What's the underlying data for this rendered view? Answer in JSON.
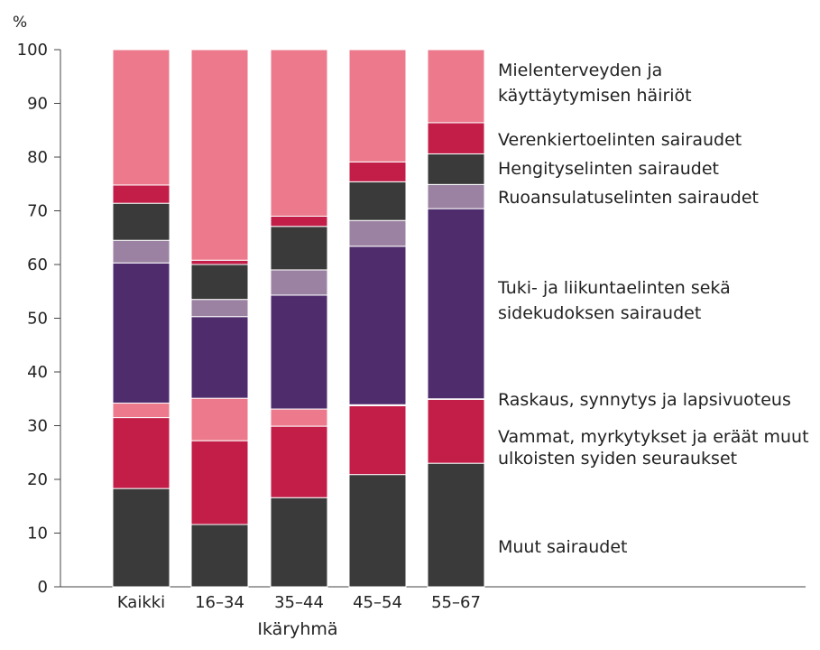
{
  "chart_data": {
    "type": "bar",
    "stacked": true,
    "ylabel": "%",
    "xlabel": "Ikäryhmä",
    "ylim": [
      0,
      100
    ],
    "yticks": [
      0,
      10,
      20,
      30,
      40,
      50,
      60,
      70,
      80,
      90,
      100
    ],
    "grid": false,
    "legend_placement": "right",
    "categories": [
      "Kaikki",
      "16–34",
      "35–44",
      "45–54",
      "55–67"
    ],
    "series": [
      {
        "name": "Muut sairaudet",
        "color": "#3a3a3a",
        "values": [
          18.3,
          11.6,
          16.6,
          20.9,
          23.0
        ]
      },
      {
        "name": "Vammat, myrkytykset ja eräät muut ulkoisten syiden seuraukset",
        "lines": [
          "Vammat, myrkytykset ja eräät muut",
          "ulkoisten syiden seuraukset"
        ],
        "color": "#c21e48",
        "values": [
          13.2,
          15.6,
          13.3,
          12.8,
          11.9
        ]
      },
      {
        "name": "Raskaus, synnytys ja lapsivuoteus",
        "lines": [
          "Raskaus, synnytys ja lapsivuoteus"
        ],
        "color": "#ec7a8c",
        "values": [
          2.7,
          7.9,
          3.2,
          0.2,
          0.1
        ]
      },
      {
        "name": "Tuki- ja liikuntaelinten sekä sidekudoksen sairaudet",
        "lines": [
          "Tuki- ja liikuntaelinten sekä",
          "sidekudoksen sairaudet"
        ],
        "color": "#4f2c6c",
        "values": [
          26.1,
          15.2,
          21.2,
          29.5,
          35.4
        ]
      },
      {
        "name": "Ruoansulatuselinten sairaudet",
        "lines": [
          "Ruoansulatuselinten sairaudet"
        ],
        "color": "#9b82a2",
        "values": [
          4.2,
          3.2,
          4.7,
          4.8,
          4.5
        ]
      },
      {
        "name": "Hengityselinten sairaudet",
        "lines": [
          "Hengityselinten sairaudet"
        ],
        "color": "#3a3a3a",
        "values": [
          6.9,
          6.5,
          8.1,
          7.2,
          5.7
        ]
      },
      {
        "name": "Verenkiertoelinten sairaudet",
        "lines": [
          "Verenkiertoelinten sairaudet"
        ],
        "color": "#c21e48",
        "values": [
          3.4,
          0.8,
          1.9,
          3.7,
          5.8
        ]
      },
      {
        "name": "Mielenterveyden ja käyttäytymisen häiriöt",
        "lines": [
          "Mielenterveyden ja",
          "käyttäytymisen häiriöt"
        ],
        "color": "#ec7a8c",
        "values": [
          25.2,
          39.2,
          31.0,
          20.9,
          13.6
        ]
      }
    ]
  }
}
